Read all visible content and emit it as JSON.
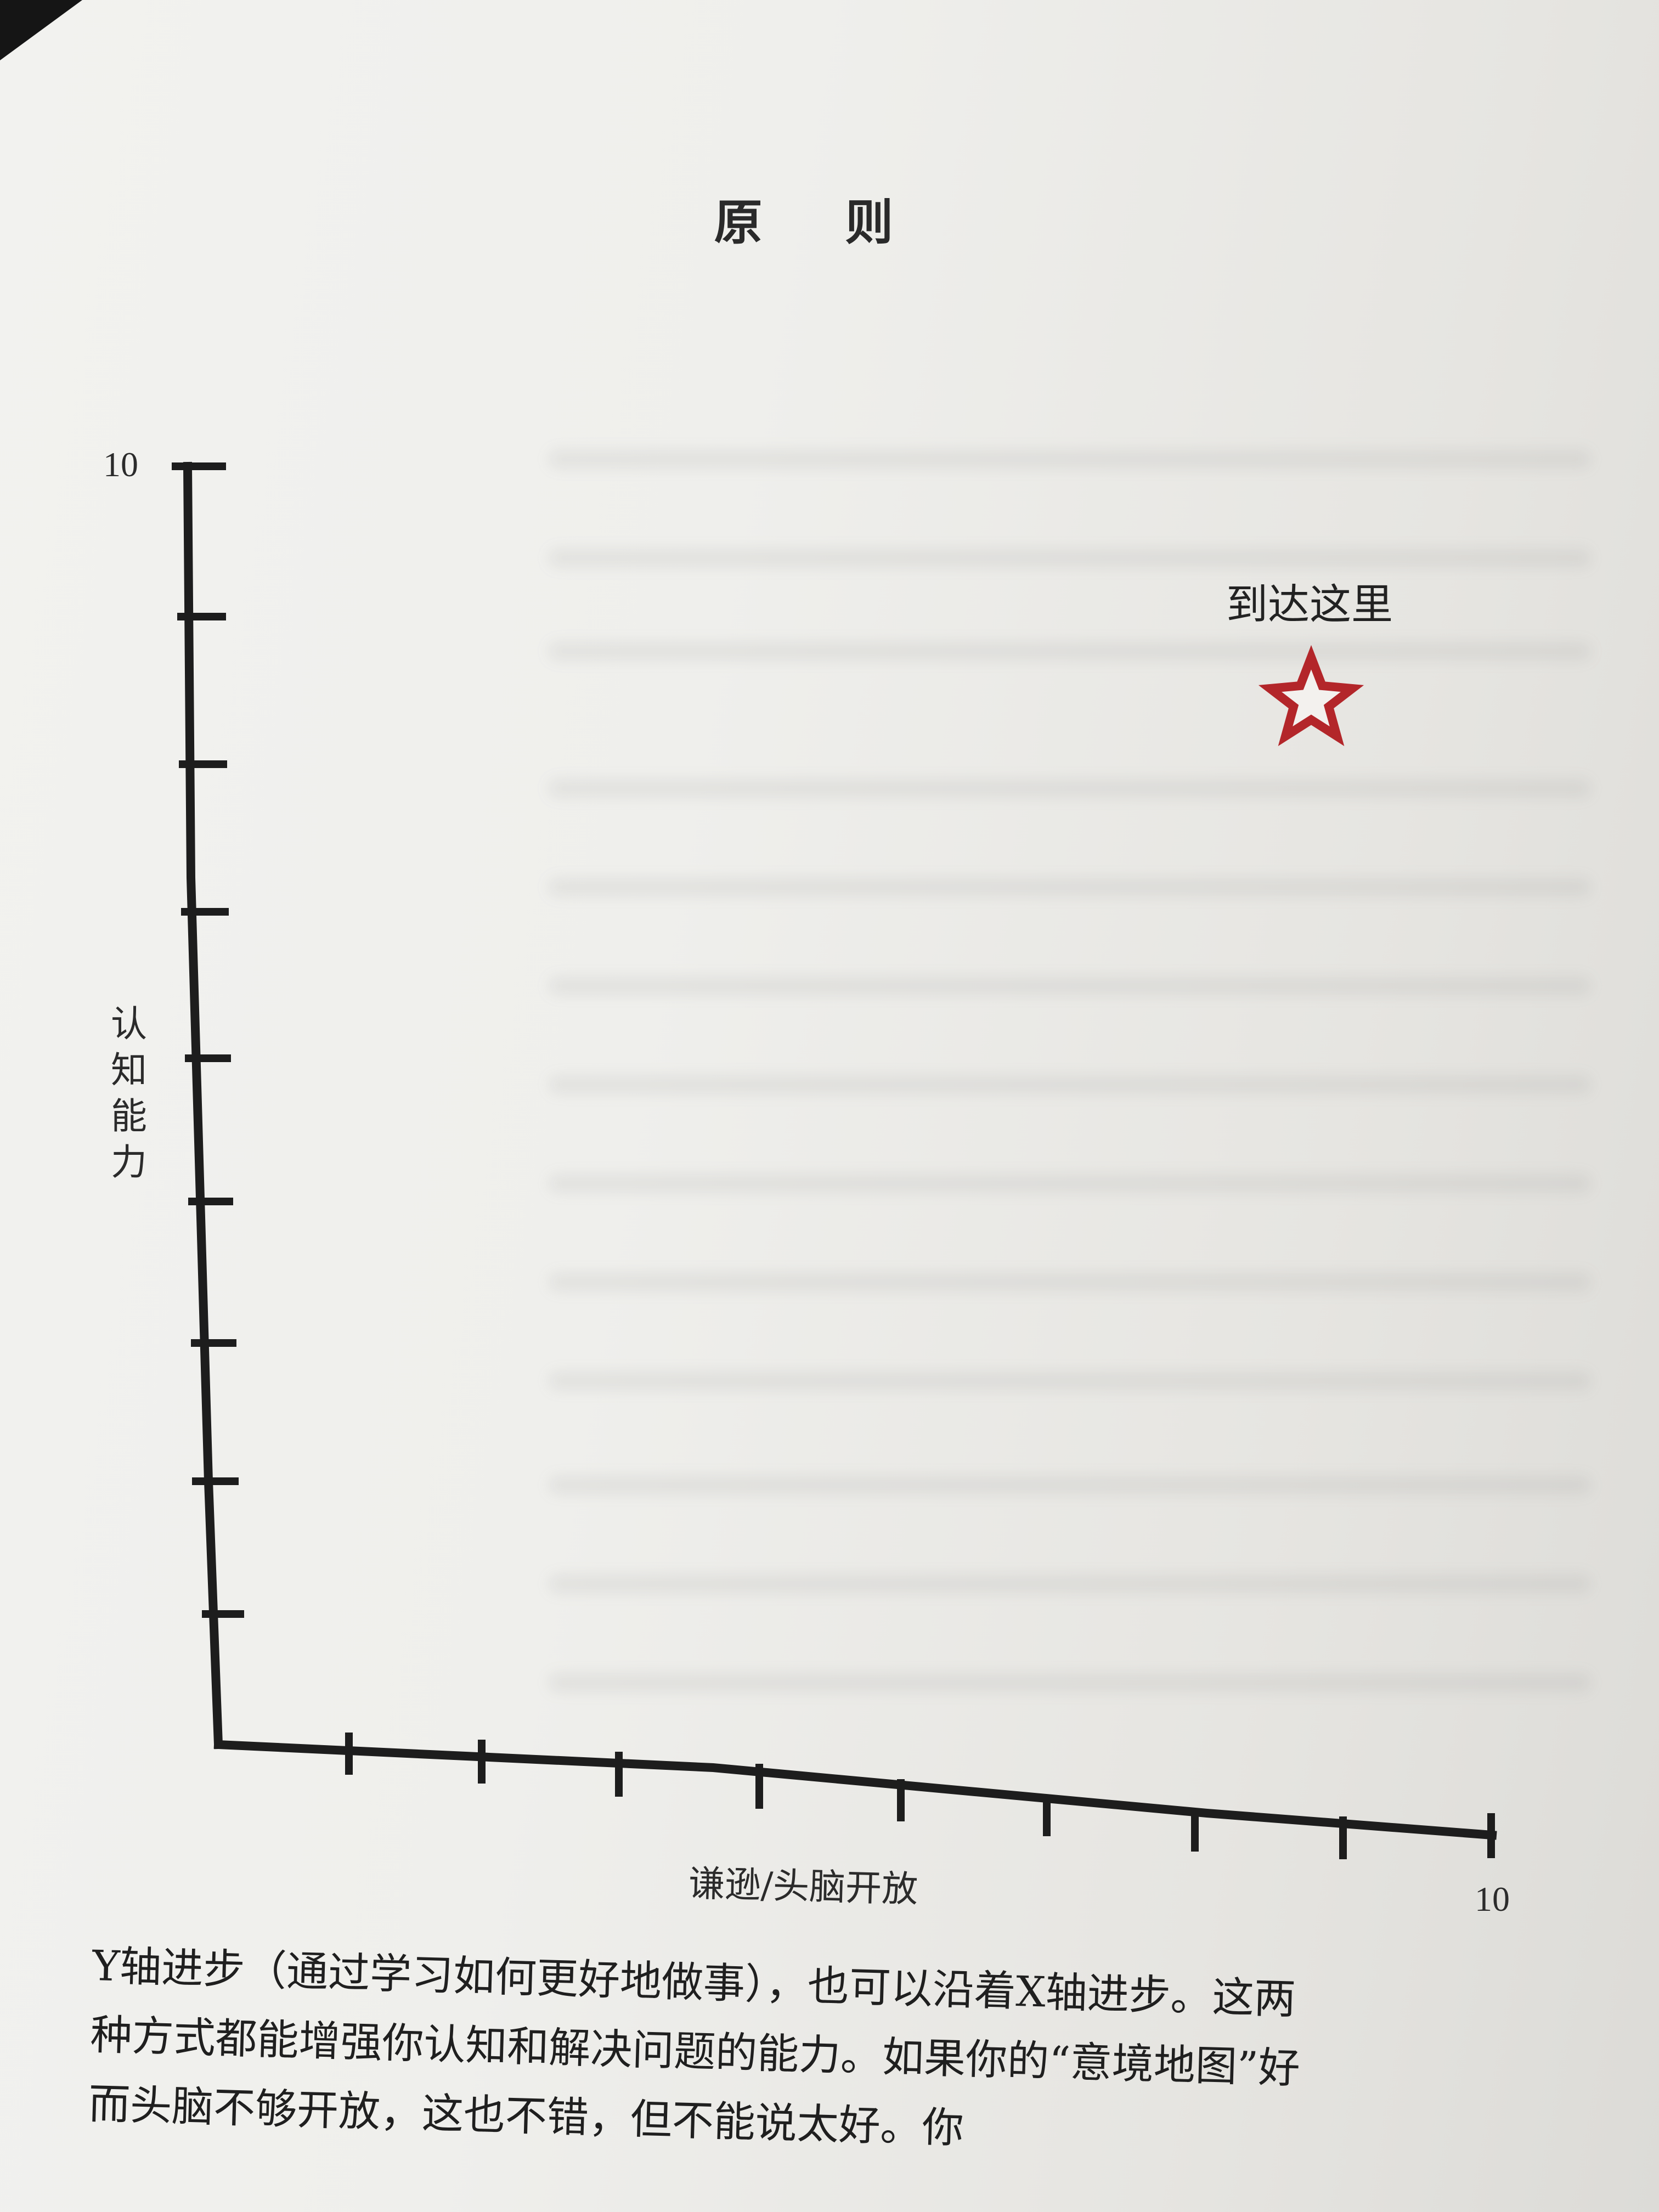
{
  "header": {
    "title": "原 则"
  },
  "figure": {
    "y_axis_label": "认知能力",
    "x_axis_label": "谦逊/头脑开放",
    "y_max_label": "10",
    "x_max_label": "10",
    "annotation": "到达这里",
    "marker_icon": "star-icon",
    "marker_color": "#b3262a"
  },
  "body_lines": [
    "Y轴进步（通过学习如何更好地做事），也可以沿着X轴进步。这两",
    "种方式都能增强你认知和解决问题的能力。如果你的“意境地图”好",
    "而头脑不够开放，这也不错，但不能说太好。你"
  ]
}
